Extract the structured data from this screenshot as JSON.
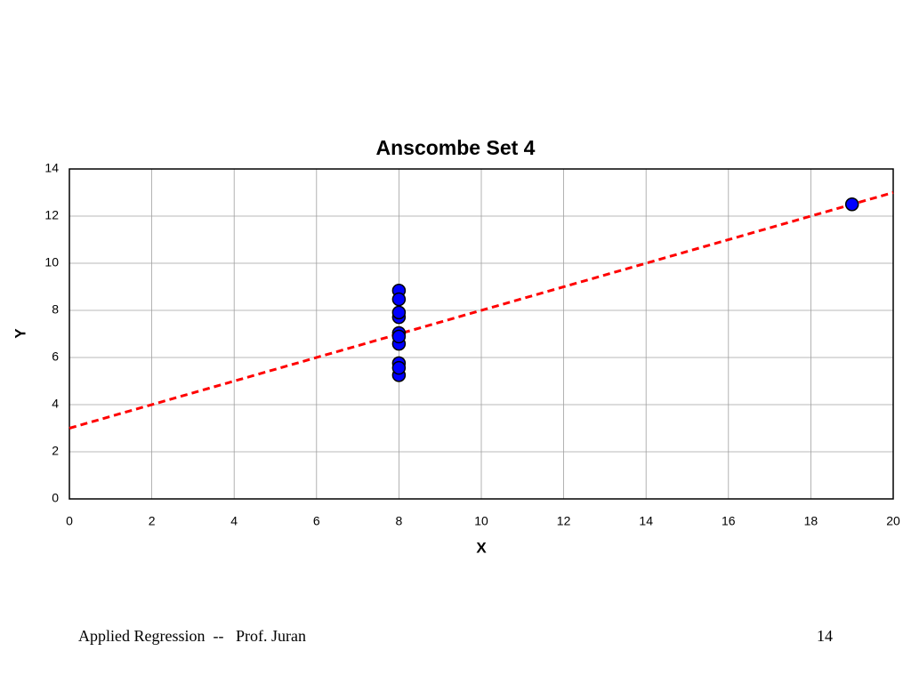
{
  "chart_data": {
    "type": "scatter",
    "title": "Anscombe Set 4",
    "x_label": "X",
    "y_label": "Y",
    "series": [
      {
        "type": "scatter",
        "color": "#0000ff",
        "x": [
          8,
          8,
          8,
          8,
          8,
          8,
          8,
          19,
          8,
          8,
          8
        ],
        "values": [
          6.58,
          5.76,
          7.71,
          8.84,
          8.47,
          7.04,
          5.25,
          12.5,
          5.56,
          7.91,
          6.89
        ]
      },
      {
        "type": "line",
        "color": "#ff0000",
        "dashed": true,
        "x": [
          0,
          20
        ],
        "values": [
          3,
          13
        ]
      }
    ],
    "xlim": [
      0,
      20
    ],
    "xticks": [
      0,
      2,
      4,
      6,
      8,
      10,
      12,
      14,
      16,
      18,
      20
    ],
    "ylim": [
      0,
      14
    ],
    "yticks": [
      0,
      2,
      4,
      6,
      8,
      10,
      12,
      14
    ],
    "grid": true
  },
  "footer": {
    "text": "Applied Regression  --   Prof. Juran",
    "page": "14"
  }
}
